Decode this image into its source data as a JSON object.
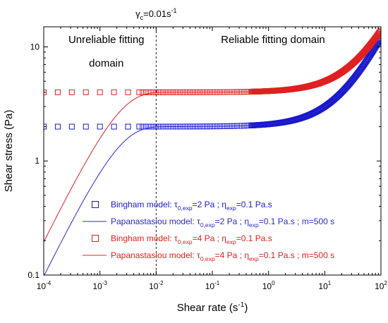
{
  "chart_data": {
    "type": "scatter",
    "x_scale": "log",
    "y_scale": "log",
    "xlim": [
      0.0001,
      100
    ],
    "ylim": [
      0.1,
      15
    ],
    "xlabel": "Shear rate (s",
    "xlabel_sup": "-1",
    "xlabel_tail": ")",
    "ylabel": "Shear stress (Pa)",
    "x_ticks": [
      {
        "value": 0.0001,
        "base": "10",
        "exp": "-4"
      },
      {
        "value": 0.001,
        "base": "10",
        "exp": "-3"
      },
      {
        "value": 0.01,
        "base": "10",
        "exp": "-2"
      },
      {
        "value": 0.1,
        "base": "10",
        "exp": "-1"
      },
      {
        "value": 1,
        "base": "10",
        "exp": "0"
      },
      {
        "value": 10,
        "base": "10",
        "exp": "1"
      },
      {
        "value": 100,
        "base": "10",
        "exp": "2"
      }
    ],
    "y_ticks": [
      {
        "value": 0.1,
        "label": "0.1"
      },
      {
        "value": 1,
        "label": "1"
      },
      {
        "value": 10,
        "label": "10"
      }
    ],
    "critical_line": {
      "x": 0.01,
      "label_prefix": "γ",
      "label_sub": "c",
      "label_value": "=0.01s",
      "label_sup": "-1"
    },
    "annotations": [
      {
        "text": "Unreliable fitting",
        "x": 0.0013,
        "y": 10.8
      },
      {
        "text": "domain",
        "x": 0.0013,
        "y": 6.7
      },
      {
        "text": "Reliable fitting domain",
        "x": 1.2,
        "y": 10.8
      }
    ],
    "series": [
      {
        "name": "Bingham model",
        "style": "markers",
        "color": "#1a1acc",
        "tau0": 2,
        "eta": 0.1,
        "tau_sub": "0,exp",
        "tau_val": "=2 Pa",
        "eta_sub": "exp",
        "eta_val": "=0.1 Pa.s",
        "tail": ""
      },
      {
        "name": "Papanastasiou model",
        "style": "line",
        "color": "#2a2acc",
        "tau0": 2,
        "eta": 0.1,
        "m": 500,
        "tau_sub": "0,exp",
        "tau_val": "=2 Pa",
        "eta_sub": "exp",
        "eta_val": "=0.1 Pa.s",
        "tail": " ; m=500 s"
      },
      {
        "name": "Bingham model",
        "style": "markers",
        "color": "#e02020",
        "tau0": 4,
        "eta": 0.1,
        "tau_sub": "0,exp",
        "tau_val": "=4 Pa",
        "eta_sub": "exp",
        "eta_val": "=0.1 Pa.s",
        "tail": ""
      },
      {
        "name": "Papanastasiou model",
        "style": "line",
        "color": "#e02020",
        "tau0": 4,
        "eta": 0.1,
        "m": 500,
        "tau_sub": "0,exp",
        "tau_val": "=4 Pa",
        "eta_sub": "exp",
        "eta_val": "=0.1 Pa.s",
        "tail": " ; m=500 s"
      }
    ],
    "legend_position": "bottom-right"
  }
}
